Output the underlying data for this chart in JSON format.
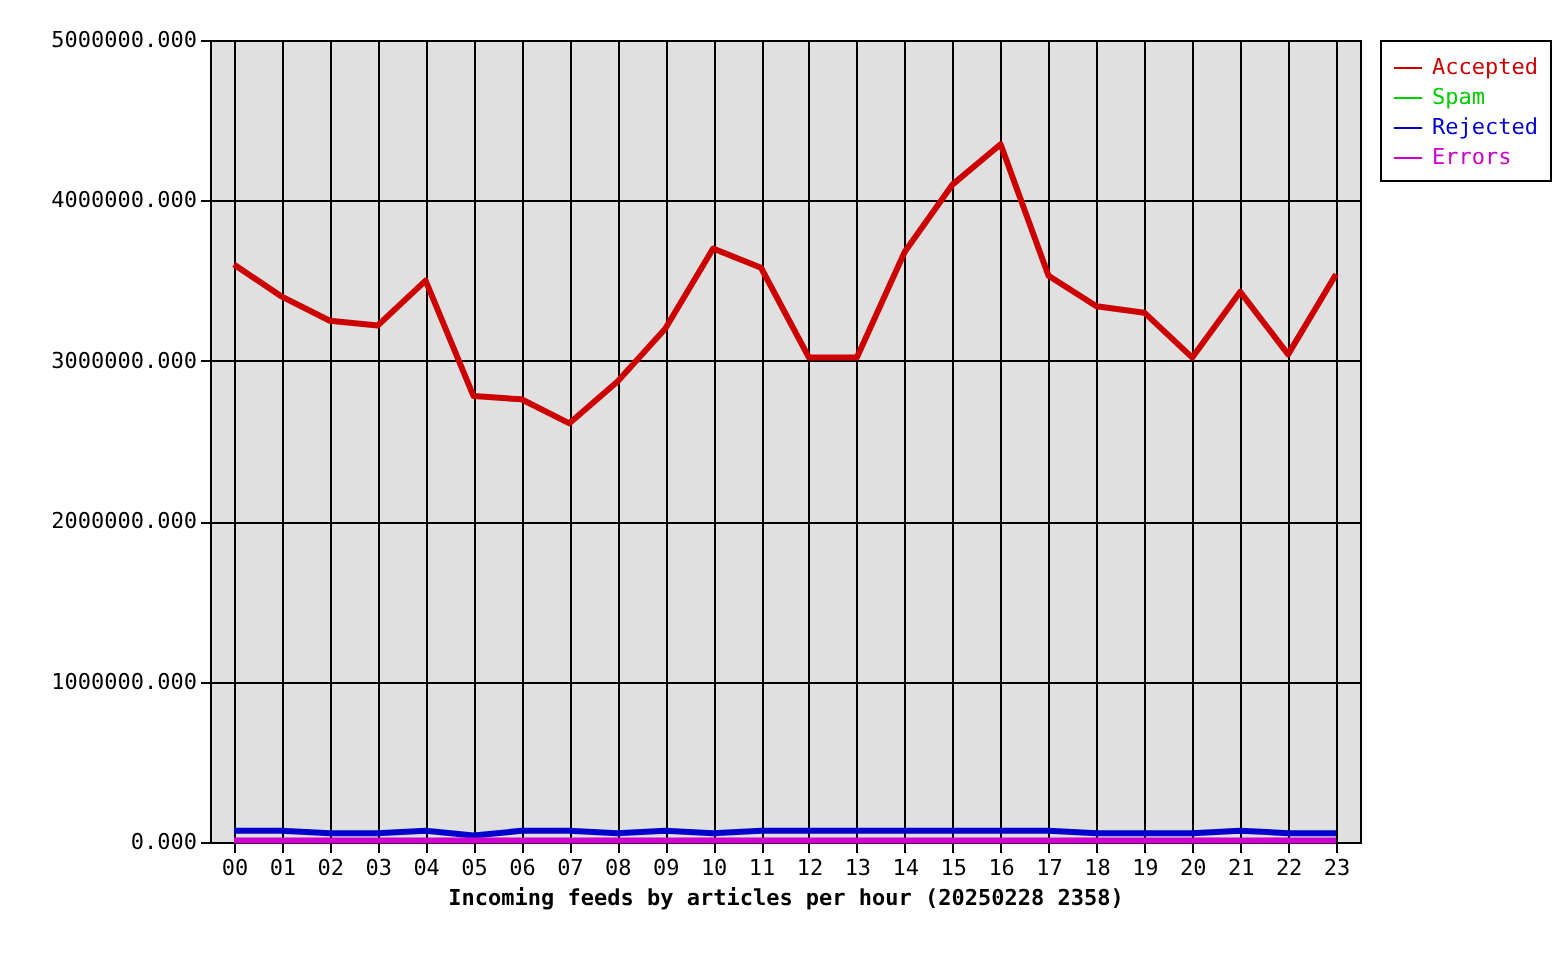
{
  "chart_data": {
    "type": "line",
    "xlabel": "Incoming feeds by articles per hour (20250228 2358)",
    "categories": [
      "00",
      "01",
      "02",
      "03",
      "04",
      "05",
      "06",
      "07",
      "08",
      "09",
      "10",
      "11",
      "12",
      "13",
      "14",
      "15",
      "16",
      "17",
      "18",
      "19",
      "20",
      "21",
      "22",
      "23"
    ],
    "series": [
      {
        "name": "Accepted",
        "color": "#cc0000",
        "values": [
          3600000,
          3400000,
          3250000,
          3220000,
          3500000,
          2780000,
          2760000,
          2610000,
          2870000,
          3200000,
          3700000,
          3580000,
          3020000,
          3020000,
          3680000,
          4100000,
          4350000,
          3530000,
          3340000,
          3300000,
          3020000,
          3430000,
          3040000,
          3540000
        ]
      },
      {
        "name": "Spam",
        "color": "#00cc00",
        "values": [
          null,
          null,
          null,
          null,
          null,
          null,
          null,
          null,
          null,
          null,
          null,
          null,
          null,
          null,
          null,
          null,
          null,
          null,
          null,
          null,
          null,
          null,
          null,
          null
        ]
      },
      {
        "name": "Rejected",
        "color": "#0000cc",
        "values": [
          70000,
          70000,
          55000,
          55000,
          70000,
          40000,
          70000,
          70000,
          55000,
          70000,
          55000,
          70000,
          70000,
          70000,
          70000,
          70000,
          70000,
          70000,
          55000,
          55000,
          55000,
          70000,
          55000,
          55000
        ]
      },
      {
        "name": "Errors",
        "color": "#cc00cc",
        "values": [
          10000,
          10000,
          10000,
          10000,
          10000,
          10000,
          10000,
          10000,
          10000,
          10000,
          10000,
          10000,
          10000,
          10000,
          10000,
          10000,
          10000,
          10000,
          10000,
          10000,
          10000,
          10000,
          10000,
          10000
        ]
      }
    ],
    "ylim": [
      0,
      5000000
    ],
    "yticks": [
      {
        "value": 0,
        "label": "0.000"
      },
      {
        "value": 1000000,
        "label": "1000000.000"
      },
      {
        "value": 2000000,
        "label": "2000000.000"
      },
      {
        "value": 3000000,
        "label": "3000000.000"
      },
      {
        "value": 4000000,
        "label": "4000000.000"
      },
      {
        "value": 5000000,
        "label": "5000000.000"
      }
    ],
    "grid": true,
    "legend": "top right"
  }
}
